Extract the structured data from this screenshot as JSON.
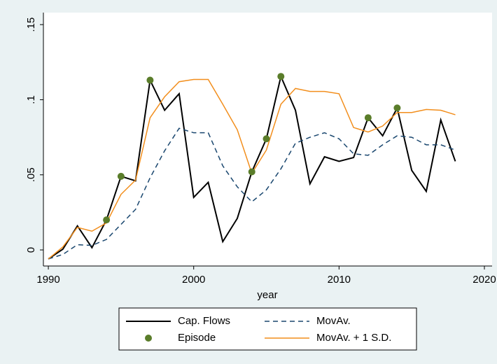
{
  "chart_data": {
    "type": "line",
    "x_label": "year",
    "x": [
      1990,
      1991,
      1992,
      1993,
      1994,
      1995,
      1996,
      1997,
      1998,
      1999,
      2000,
      2001,
      2002,
      2003,
      2004,
      2005,
      2006,
      2007,
      2008,
      2009,
      2010,
      2011,
      2012,
      2013,
      2014,
      2015,
      2016,
      2017,
      2018
    ],
    "xlim": [
      1989.66,
      2020.53
    ],
    "xticks": [
      1990,
      2000,
      2010,
      2020
    ],
    "ylim": [
      -0.0107,
      0.158
    ],
    "yticks": [
      0,
      {
        "value": 0.05,
        "label": ".05"
      },
      {
        "value": 0.1,
        "label": ".1"
      },
      {
        "value": 0.15,
        "label": ".15"
      }
    ],
    "series": [
      {
        "name": "Cap. Flows",
        "color": "#000000",
        "style": "solid",
        "values": [
          -0.006,
          0.0005,
          0.016,
          0.0015,
          0.02,
          0.049,
          0.046,
          0.113,
          0.093,
          0.104,
          0.035,
          0.045,
          0.0055,
          0.021,
          0.052,
          0.074,
          0.1155,
          0.093,
          0.044,
          0.062,
          0.059,
          0.0615,
          0.088,
          0.076,
          0.0945,
          0.053,
          0.039,
          0.0865,
          0.059
        ]
      },
      {
        "name": "MovAv.",
        "color": "#1a476f",
        "style": "dashed",
        "values": [
          -0.006,
          -0.003,
          0.0035,
          0.003,
          0.007,
          0.017,
          0.027,
          0.048,
          0.066,
          0.081,
          0.078,
          0.078,
          0.056,
          0.042,
          0.032,
          0.04,
          0.054,
          0.071,
          0.075,
          0.078,
          0.074,
          0.064,
          0.063,
          0.07,
          0.076,
          0.075,
          0.07,
          0.07,
          0.0665
        ]
      },
      {
        "name": "Episode",
        "color": "#5a7d2a",
        "style": "markers",
        "x": [
          1994,
          1995,
          1997,
          2004,
          2005,
          2006,
          2012,
          2014
        ],
        "values": [
          0.02,
          0.049,
          0.113,
          0.052,
          0.074,
          0.1155,
          0.088,
          0.0945
        ]
      },
      {
        "name": "MovAv. + 1 S.D.",
        "color": "#f28e1c",
        "style": "solid",
        "values": [
          -0.006,
          0.002,
          0.015,
          0.0125,
          0.018,
          0.037,
          0.0465,
          0.088,
          0.102,
          0.112,
          0.1135,
          0.1135,
          0.097,
          0.08,
          0.051,
          0.0665,
          0.097,
          0.1075,
          0.1055,
          0.1055,
          0.104,
          0.0815,
          0.0785,
          0.0825,
          0.0915,
          0.0915,
          0.0935,
          0.093,
          0.09
        ]
      }
    ]
  }
}
